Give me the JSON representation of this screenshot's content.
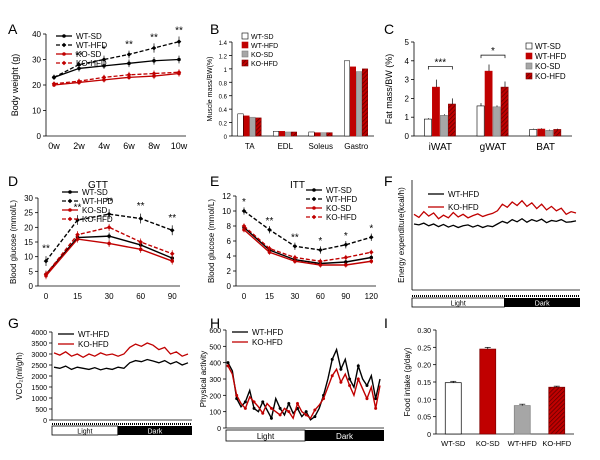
{
  "colors": {
    "black": "#000000",
    "red": "#c00000",
    "grey": "#a6a6a6",
    "darkred": "#7f0000"
  },
  "chart_data": [
    {
      "panel": "A",
      "type": "line",
      "ylabel": "Body weight (g)",
      "ylim": [
        0,
        40
      ],
      "yticks": [
        "0",
        "10",
        "20",
        "30",
        "40"
      ],
      "categories": [
        "0w",
        "2w",
        "4w",
        "6w",
        "8w",
        "10w"
      ],
      "series": [
        {
          "name": "WT-SD",
          "values": [
            23,
            26.5,
            27.5,
            28.5,
            29.5,
            30
          ],
          "errors": [
            1,
            1.2,
            1.2,
            1.5,
            1.5,
            1.5
          ]
        },
        {
          "name": "WT-HFD",
          "values": [
            23,
            28,
            30,
            32,
            34.5,
            37
          ],
          "errors": [
            1,
            1.2,
            1.5,
            1.5,
            1.8,
            2
          ]
        },
        {
          "name": "KO-SD",
          "values": [
            20,
            21,
            22,
            23,
            23.5,
            24.5
          ],
          "errors": [
            0.8,
            1,
            1,
            1,
            1.2,
            1.2
          ]
        },
        {
          "name": "KO-HFD",
          "values": [
            20.5,
            21.5,
            23,
            24,
            24.5,
            25
          ],
          "errors": [
            0.8,
            1,
            1,
            1.2,
            1.2,
            1.2
          ]
        }
      ],
      "annotations": [
        "**",
        "*",
        "**",
        "**",
        "**"
      ]
    },
    {
      "panel": "B",
      "type": "bar",
      "ylabel": "Muscle mass/BW(%)",
      "ylim": [
        0,
        1.4
      ],
      "yticks": [
        "0",
        "0.2",
        "0.4",
        "0.6",
        "0.8",
        "1",
        "1.2",
        "1.4"
      ],
      "categories": [
        "TA",
        "EDL",
        "Soleus",
        "Gastro"
      ],
      "series": [
        {
          "name": "WT-SD",
          "values": [
            0.33,
            0.07,
            0.06,
            1.12
          ]
        },
        {
          "name": "WT-HFD",
          "values": [
            0.3,
            0.07,
            0.05,
            1.03
          ]
        },
        {
          "name": "KO-SD",
          "values": [
            0.28,
            0.06,
            0.05,
            0.96
          ]
        },
        {
          "name": "KO-HFD",
          "values": [
            0.27,
            0.06,
            0.05,
            1.0
          ]
        }
      ]
    },
    {
      "panel": "C",
      "type": "bar",
      "ylabel": "Fat mass/BW (%)",
      "ylim": [
        0,
        5
      ],
      "yticks": [
        "0",
        "1",
        "2",
        "3",
        "4",
        "5"
      ],
      "categories": [
        "iWAT",
        "gWAT",
        "BAT"
      ],
      "series": [
        {
          "name": "WT-SD",
          "values": [
            0.9,
            1.6,
            0.35
          ]
        },
        {
          "name": "WT-HFD",
          "values": [
            2.6,
            3.45,
            0.37
          ]
        },
        {
          "name": "KO-SD",
          "values": [
            1.1,
            1.55,
            0.3
          ]
        },
        {
          "name": "KO-HFD",
          "values": [
            1.7,
            2.6,
            0.35
          ]
        }
      ],
      "annotations": [
        "***",
        "*"
      ]
    },
    {
      "panel": "D",
      "type": "line",
      "title": "GTT",
      "ylabel": "Blood glucose (mmol/L)",
      "ylim": [
        0,
        30
      ],
      "yticks": [
        "0",
        "5",
        "10",
        "15",
        "20",
        "25",
        "30"
      ],
      "categories": [
        "0",
        "15",
        "30",
        "60",
        "90"
      ],
      "series": [
        {
          "name": "WT-SD",
          "values": [
            4,
            16.5,
            17,
            14,
            9.5
          ]
        },
        {
          "name": "WT-HFD",
          "values": [
            8.5,
            22.5,
            24.5,
            23,
            19
          ]
        },
        {
          "name": "KO-SD",
          "values": [
            3.5,
            16,
            14.5,
            12.5,
            8.5
          ]
        },
        {
          "name": "KO-HFD",
          "values": [
            4,
            17.5,
            20,
            15,
            11
          ]
        }
      ],
      "annotations": [
        "**",
        "**",
        "**",
        "**",
        "**"
      ]
    },
    {
      "panel": "E",
      "type": "line",
      "title": "ITT",
      "ylabel": "Blood glucose (mmol/L)",
      "ylim": [
        0,
        12
      ],
      "yticks": [
        "0",
        "2",
        "4",
        "6",
        "8",
        "10",
        "12"
      ],
      "categories": [
        "0",
        "15",
        "30",
        "60",
        "90",
        "120"
      ],
      "series": [
        {
          "name": "WT-SD",
          "values": [
            7.8,
            4.8,
            3.5,
            3.0,
            3.2,
            3.8
          ]
        },
        {
          "name": "WT-HFD",
          "values": [
            10.0,
            7.5,
            5.3,
            4.8,
            5.5,
            6.5
          ]
        },
        {
          "name": "KO-SD",
          "values": [
            7.5,
            4.5,
            3.3,
            2.8,
            2.8,
            3.3
          ]
        },
        {
          "name": "KO-HFD",
          "values": [
            8.0,
            5.0,
            3.8,
            3.3,
            3.8,
            4.5
          ]
        }
      ],
      "annotations": [
        "*",
        "**",
        "**",
        "*",
        "*",
        "*"
      ]
    },
    {
      "panel": "F",
      "type": "line",
      "ylabel": "Energy expenditure(kcal/h)",
      "ylim": [
        0,
        25
      ],
      "series": [
        {
          "name": "WT-HFD",
          "values": [
            15,
            14.8,
            15.2,
            14.6,
            15,
            14.4,
            14.9,
            14.3,
            14.7,
            14.2,
            14.6,
            14.8,
            14.3,
            14.7,
            14.2,
            14.6,
            14.4,
            15,
            15.6,
            15.2,
            16,
            15.5,
            16.2,
            15.4,
            16,
            15.6,
            16.1,
            15.3,
            15.8,
            15.6,
            16,
            15.4,
            15.5,
            15.7
          ]
        },
        {
          "name": "KO-HFD",
          "values": [
            17.2,
            16.5,
            17.8,
            16.8,
            17.5,
            16.2,
            17,
            16.4,
            17.6,
            16.6,
            17.2,
            16.4,
            16.9,
            17.3,
            16.7,
            17.1,
            17.4,
            18,
            19.5,
            18.8,
            20,
            19.2,
            20.3,
            19,
            19.8,
            18.5,
            19.5,
            18.2,
            19,
            18,
            18.6,
            17.2,
            17.8,
            17.5
          ]
        }
      ],
      "phase_labels": [
        "Light",
        "Dark"
      ]
    },
    {
      "panel": "G",
      "type": "line",
      "ylabel": "VCO₂(ml/g/h)",
      "ylim": [
        0,
        4000
      ],
      "yticks": [
        "0",
        "500",
        "1000",
        "1500",
        "2000",
        "2500",
        "3000",
        "3500",
        "4000"
      ],
      "series": [
        {
          "name": "WT-HFD",
          "values": [
            2400,
            2350,
            2450,
            2300,
            2400,
            2350,
            2300,
            2380,
            2280,
            2350,
            2300,
            2400,
            2350,
            2600,
            2700,
            2650,
            2750,
            2680,
            2600,
            2700,
            2550,
            2650,
            2500,
            2600
          ]
        },
        {
          "name": "KO-HFD",
          "values": [
            3050,
            2950,
            3100,
            2900,
            3000,
            2850,
            3000,
            2900,
            3050,
            2950,
            3000,
            2900,
            3000,
            3300,
            3450,
            3350,
            3500,
            3400,
            3200,
            3300,
            3000,
            3100,
            2900,
            3000
          ]
        }
      ],
      "phase_labels": [
        "Light",
        "Dark"
      ]
    },
    {
      "panel": "H",
      "type": "line",
      "ylabel": "Physical activity",
      "ylim": [
        0,
        600
      ],
      "yticks": [
        "0",
        "100",
        "200",
        "300",
        "400",
        "500",
        "600"
      ],
      "series": [
        {
          "name": "WT-HFD",
          "values": [
            400,
            350,
            180,
            130,
            160,
            230,
            120,
            100,
            160,
            110,
            60,
            180,
            120,
            80,
            150,
            90,
            120,
            70,
            100,
            50,
            70,
            120,
            200,
            300,
            420,
            480,
            360,
            420,
            300,
            250,
            380,
            300,
            260,
            320,
            180,
            300
          ]
        },
        {
          "name": "KO-HFD",
          "values": [
            380,
            330,
            200,
            150,
            120,
            190,
            160,
            130,
            90,
            150,
            120,
            100,
            80,
            120,
            100,
            60,
            150,
            100,
            80,
            60,
            110,
            140,
            180,
            250,
            320,
            360,
            280,
            330,
            260,
            200,
            300,
            240,
            180,
            250,
            120,
            260
          ]
        }
      ],
      "phase_labels": [
        "Light",
        "Dark"
      ]
    },
    {
      "panel": "I",
      "type": "bar",
      "ylabel": "Food intake (g/day)",
      "ylim": [
        0,
        0.3
      ],
      "yticks": [
        "0",
        "0.05",
        "0.10",
        "0.15",
        "0.20",
        "0.25",
        "0.30"
      ],
      "categories": [
        "WT-SD",
        "KO-SD",
        "WT-HFD",
        "KO-HFD"
      ],
      "values": [
        0.148,
        0.245,
        0.082,
        0.135
      ],
      "errors": [
        0.004,
        0.005,
        0.004,
        0.003
      ]
    }
  ],
  "panel_letters": [
    "A",
    "B",
    "C",
    "D",
    "E",
    "F",
    "G",
    "H",
    "I"
  ]
}
